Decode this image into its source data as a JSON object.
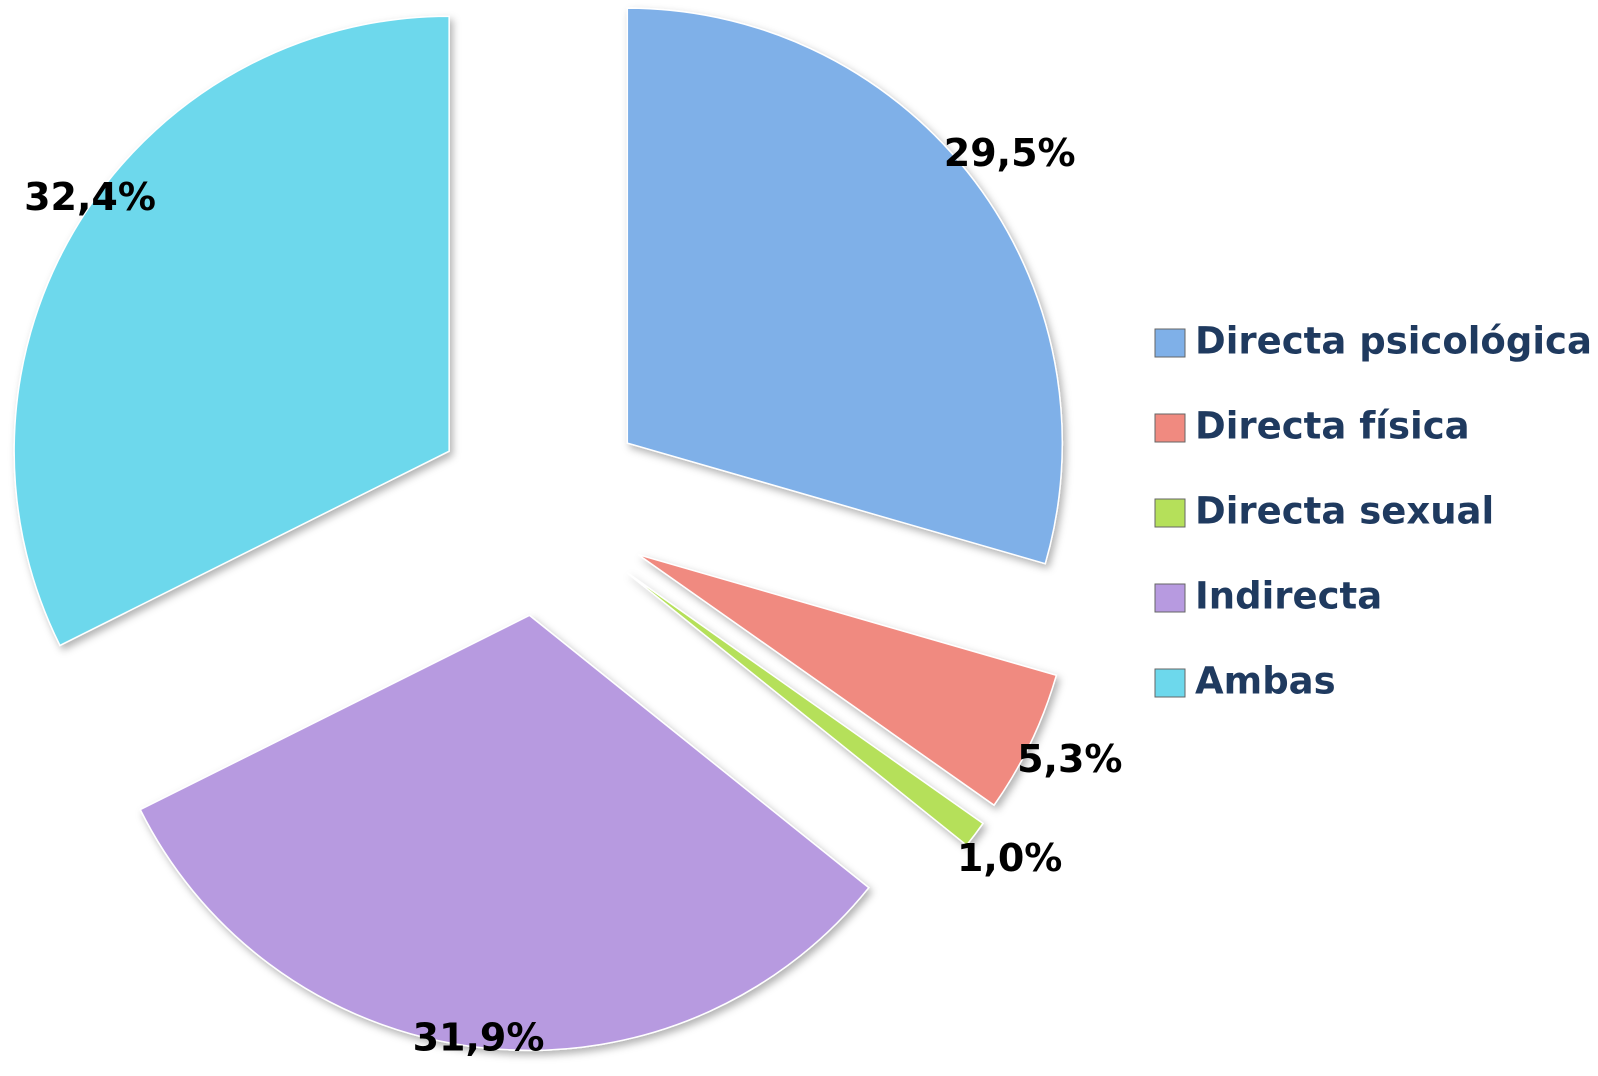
{
  "chart_data": {
    "type": "pie",
    "categories": [
      "Directa psicológica",
      "Directa física",
      "Directa sexual",
      "Indirecta",
      "Ambas"
    ],
    "values": [
      29.5,
      5.3,
      1.0,
      31.9,
      32.4
    ],
    "value_labels": [
      "29,5%",
      "5,3%",
      "1,0%",
      "31,9%",
      "32,4%"
    ],
    "colors": [
      "#7fb0e8",
      "#f08a80",
      "#b5e05a",
      "#b79ae0",
      "#6dd8ec"
    ],
    "legend": "right"
  }
}
